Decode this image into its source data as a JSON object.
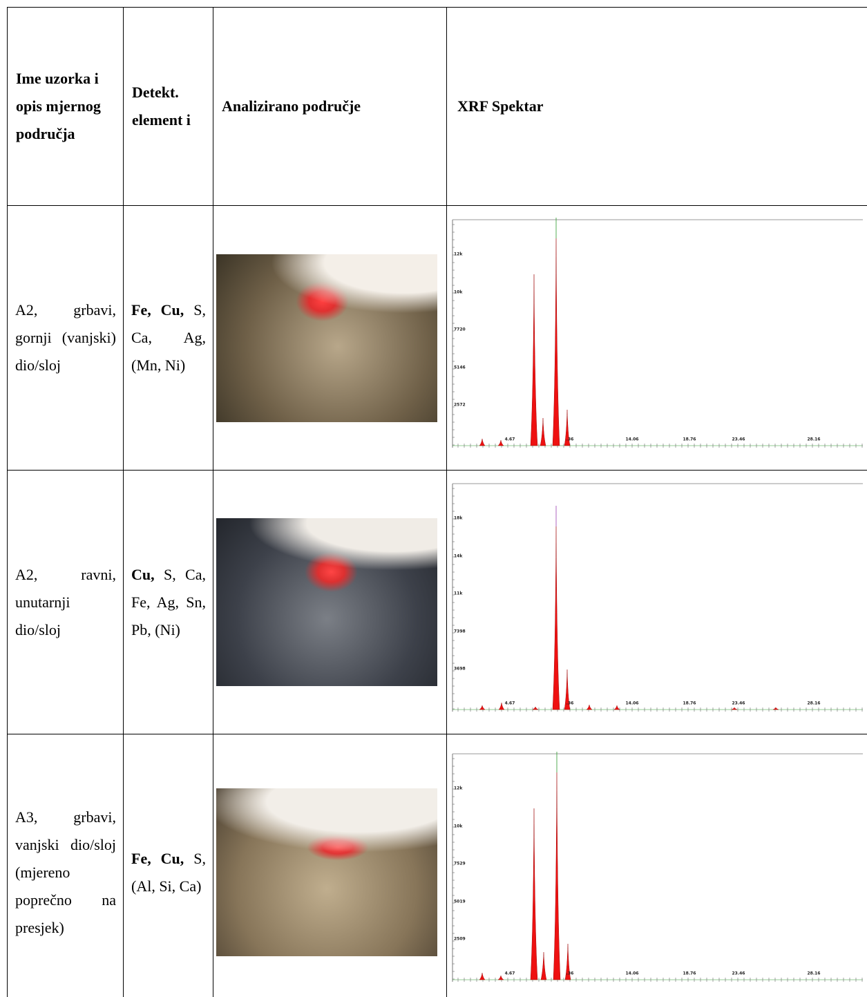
{
  "table": {
    "header": [
      "Ime uzorka i opis mjernog područja",
      "Detekt. element i",
      "Analizirano područje",
      "XRF Spektar"
    ],
    "rows": [
      {
        "sample": "A2, grbavi, gornji (vanjski) dio/sloj",
        "elements_major": "Fe, Cu,",
        "elements_minor": "S, Ca, Ag, (Mn, Ni)",
        "spectrum": {
          "y_labels": [
            "12k",
            "10k",
            "7720",
            "5146",
            "2572"
          ],
          "x_labels": [
            "4.67",
            ".36",
            "14.06",
            "18.76",
            "23.46",
            "28.16"
          ]
        }
      },
      {
        "sample": "A2, ravni, unutarnji dio/sloj",
        "elements_major": "Cu,",
        "elements_minor": "S, Ca, Fe, Ag, Sn, Pb, (Ni)",
        "spectrum": {
          "y_labels": [
            "18k",
            "14k",
            "11k",
            "7398",
            "3698"
          ],
          "x_labels": [
            "4.67",
            ".36",
            "14.06",
            "18.76",
            "23.46",
            "28.16"
          ]
        }
      },
      {
        "sample": "A3, grbavi, vanjski dio/sloj (mjereno poprečno na presjek)",
        "elements_major": "Fe, Cu,",
        "elements_minor": "S, (Al, Si, Ca)",
        "spectrum": {
          "y_labels": [
            "12k",
            "10k",
            "7529",
            "5019",
            "2509"
          ],
          "x_labels": [
            "4.67",
            ".36",
            "14.06",
            "18.76",
            "23.46",
            "28.16"
          ]
        }
      }
    ]
  }
}
